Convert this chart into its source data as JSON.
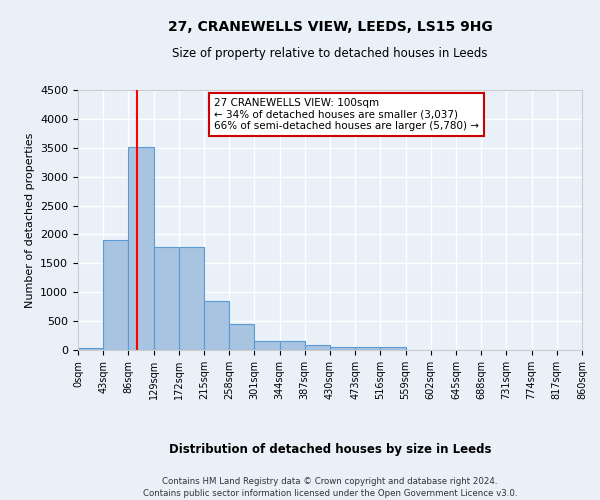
{
  "title1": "27, CRANEWELLS VIEW, LEEDS, LS15 9HG",
  "title2": "Size of property relative to detached houses in Leeds",
  "xlabel": "Distribution of detached houses by size in Leeds",
  "ylabel": "Number of detached properties",
  "bin_labels": [
    "0sqm",
    "43sqm",
    "86sqm",
    "129sqm",
    "172sqm",
    "215sqm",
    "258sqm",
    "301sqm",
    "344sqm",
    "387sqm",
    "430sqm",
    "473sqm",
    "516sqm",
    "559sqm",
    "602sqm",
    "645sqm",
    "688sqm",
    "731sqm",
    "774sqm",
    "817sqm",
    "860sqm"
  ],
  "bar_values": [
    40,
    1910,
    3510,
    1775,
    1775,
    840,
    450,
    160,
    155,
    90,
    60,
    55,
    55,
    0,
    0,
    0,
    0,
    0,
    0,
    0
  ],
  "bar_color": "#a8c4e0",
  "bar_edge_color": "#5b9bd5",
  "ylim": [
    0,
    4500
  ],
  "yticks": [
    0,
    500,
    1000,
    1500,
    2000,
    2500,
    3000,
    3500,
    4000,
    4500
  ],
  "annotation_text": "27 CRANEWELLS VIEW: 100sqm\n← 34% of detached houses are smaller (3,037)\n66% of semi-detached houses are larger (5,780) →",
  "annotation_box_color": "#ffffff",
  "annotation_box_edge": "#cc0000",
  "red_line_x": 2.33,
  "footnote1": "Contains HM Land Registry data © Crown copyright and database right 2024.",
  "footnote2": "Contains public sector information licensed under the Open Government Licence v3.0.",
  "background_color": "#eaf0f8",
  "grid_color": "#ffffff"
}
